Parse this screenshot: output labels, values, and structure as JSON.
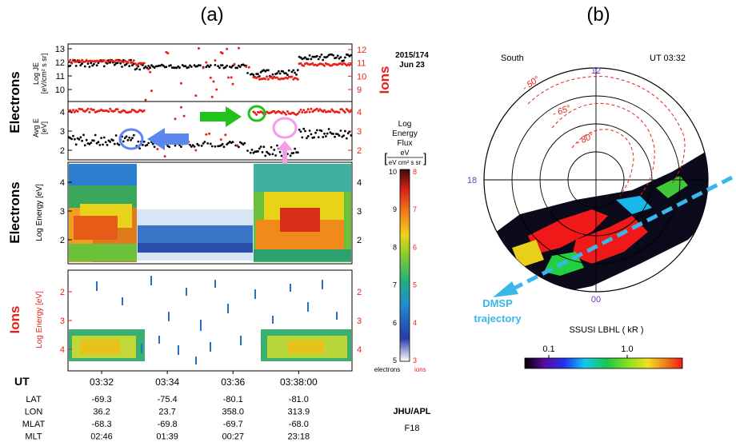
{
  "panel_a": {
    "label": "(a)",
    "date_line1": "2015/174",
    "date_line2": "Jun 23",
    "electrons_label_top": "Electrons",
    "electrons_label_mid": "Electrons",
    "ions_label_top": "Ions",
    "ions_label_bottom": "Ions",
    "je_axis_label_line1": "Log JE",
    "je_axis_label_line2": "[eV/cm² s sr]",
    "avg_e_label_line1": "Avg E",
    "avg_e_label_line2": "[eV]",
    "electron_energy_label": "Log Energy [eV]",
    "ion_energy_label": "Log Energy [eV]",
    "colorbar_title_line1": "Log",
    "colorbar_title_line2": "Energy",
    "colorbar_title_line3": "Flux",
    "colorbar_units_num": "eV",
    "colorbar_units_den": "eV cm² s sr",
    "colorbar_electron_ticks": [
      "10",
      "9",
      "8",
      "7",
      "6",
      "5"
    ],
    "colorbar_ion_ticks": [
      "8",
      "7",
      "6",
      "5",
      "4",
      "3"
    ],
    "colorbar_footer_electrons": "electrons",
    "colorbar_footer_ions": "ions",
    "je_left_ticks": [
      "13",
      "12",
      "11",
      "10"
    ],
    "je_right_ticks": [
      "12",
      "11",
      "10",
      "9"
    ],
    "avg_left_ticks": [
      "4",
      "3",
      "2"
    ],
    "avg_right_ticks": [
      "4",
      "3",
      "2"
    ],
    "e_energy_ticks": [
      "4",
      "3",
      "2"
    ],
    "i_energy_ticks": [
      "2",
      "3",
      "4"
    ],
    "ut_header": "UT",
    "ut_ticks": [
      "03:32",
      "03:34",
      "03:36",
      "03:38:00"
    ],
    "ephemeris": [
      {
        "name": "LAT",
        "values": [
          "-69.3",
          "-75.4",
          "-80.1",
          "-81.0"
        ]
      },
      {
        "name": "LON",
        "values": [
          "36.2",
          "23.7",
          "358.0",
          "313.9"
        ]
      },
      {
        "name": "MLAT",
        "values": [
          "-68.3",
          "-69.8",
          "-69.7",
          "-68.0"
        ]
      },
      {
        "name": "MLT",
        "values": [
          "02:46",
          "01:39",
          "00:27",
          "23:18"
        ]
      }
    ],
    "institution": "JHU/APL",
    "satellite": "F18"
  },
  "panel_b": {
    "label": "(b)",
    "hemisphere": "South",
    "time": "UT 03:32",
    "mlt_top": "12",
    "mlt_left": "18",
    "mlt_bottom": "00",
    "lat_labels": [
      "- 50°",
      "- 65°",
      "- 80°"
    ],
    "trajectory_label_line1": "DMSP",
    "trajectory_label_line2": "trajectory",
    "colorbar_title": "SSUSI LBHL  ( kR )",
    "colorbar_ticks": [
      "0.1",
      "1.0"
    ]
  },
  "colors": {
    "electron_red": "#e8201a",
    "arrow_green": "#22c21a",
    "arrow_blue": "#5b86ee",
    "arrow_pink": "#f39de6",
    "trajectory_cyan": "#39b6ea",
    "purple_text": "#6a3fc4"
  },
  "chart_data": [
    {
      "type": "scatter",
      "title": "",
      "ylabel": "Log JE [eV/cm² s sr]",
      "ylim": [
        9.3,
        13.2
      ],
      "y2label": "Ions",
      "y2lim": [
        8.5,
        12.2
      ],
      "x": [
        "03:31.0",
        "03:33.0",
        "03:36.4",
        "03:38.0",
        "03:39.6"
      ],
      "series": [
        {
          "name": "Electrons",
          "values": [
            11.9,
            11.7,
            11.2,
            12.3,
            12.4
          ]
        },
        {
          "name": "Ions",
          "values": [
            11.1,
            10.9,
            10.0,
            10.9,
            11.2
          ]
        }
      ]
    },
    {
      "type": "scatter",
      "title": "",
      "ylabel": "Avg E [eV]",
      "ylim": [
        1.9,
        4.6
      ],
      "y2label": "Ions",
      "y2lim": [
        1.9,
        4.6
      ],
      "x": [
        "03:31.0",
        "03:33.0",
        "03:36.4",
        "03:38.0",
        "03:39.6"
      ],
      "series": [
        {
          "name": "Electrons",
          "values": [
            2.8,
            2.6,
            2.3,
            3.1,
            3.2
          ]
        },
        {
          "name": "Ions",
          "values": [
            4.2,
            4.2,
            4.1,
            4.2,
            4.2
          ]
        }
      ]
    },
    {
      "type": "heatmap",
      "title": "",
      "xlabel": "UT",
      "ylabel": "Log Energy [eV]",
      "ylim": [
        1.5,
        4.5
      ],
      "colorbar": "Log Energy Flux (electrons), 5 to 10",
      "x": [
        "03:32",
        "03:34",
        "03:36",
        "03:38:00"
      ]
    },
    {
      "type": "heatmap",
      "title": "",
      "xlabel": "UT",
      "ylabel": "Log Energy [eV]",
      "ylim": [
        1.5,
        4.5
      ],
      "colorbar": "Log Energy Flux (ions), 3 to 8",
      "x": [
        "03:32",
        "03:34",
        "03:36",
        "03:38:00"
      ]
    }
  ]
}
